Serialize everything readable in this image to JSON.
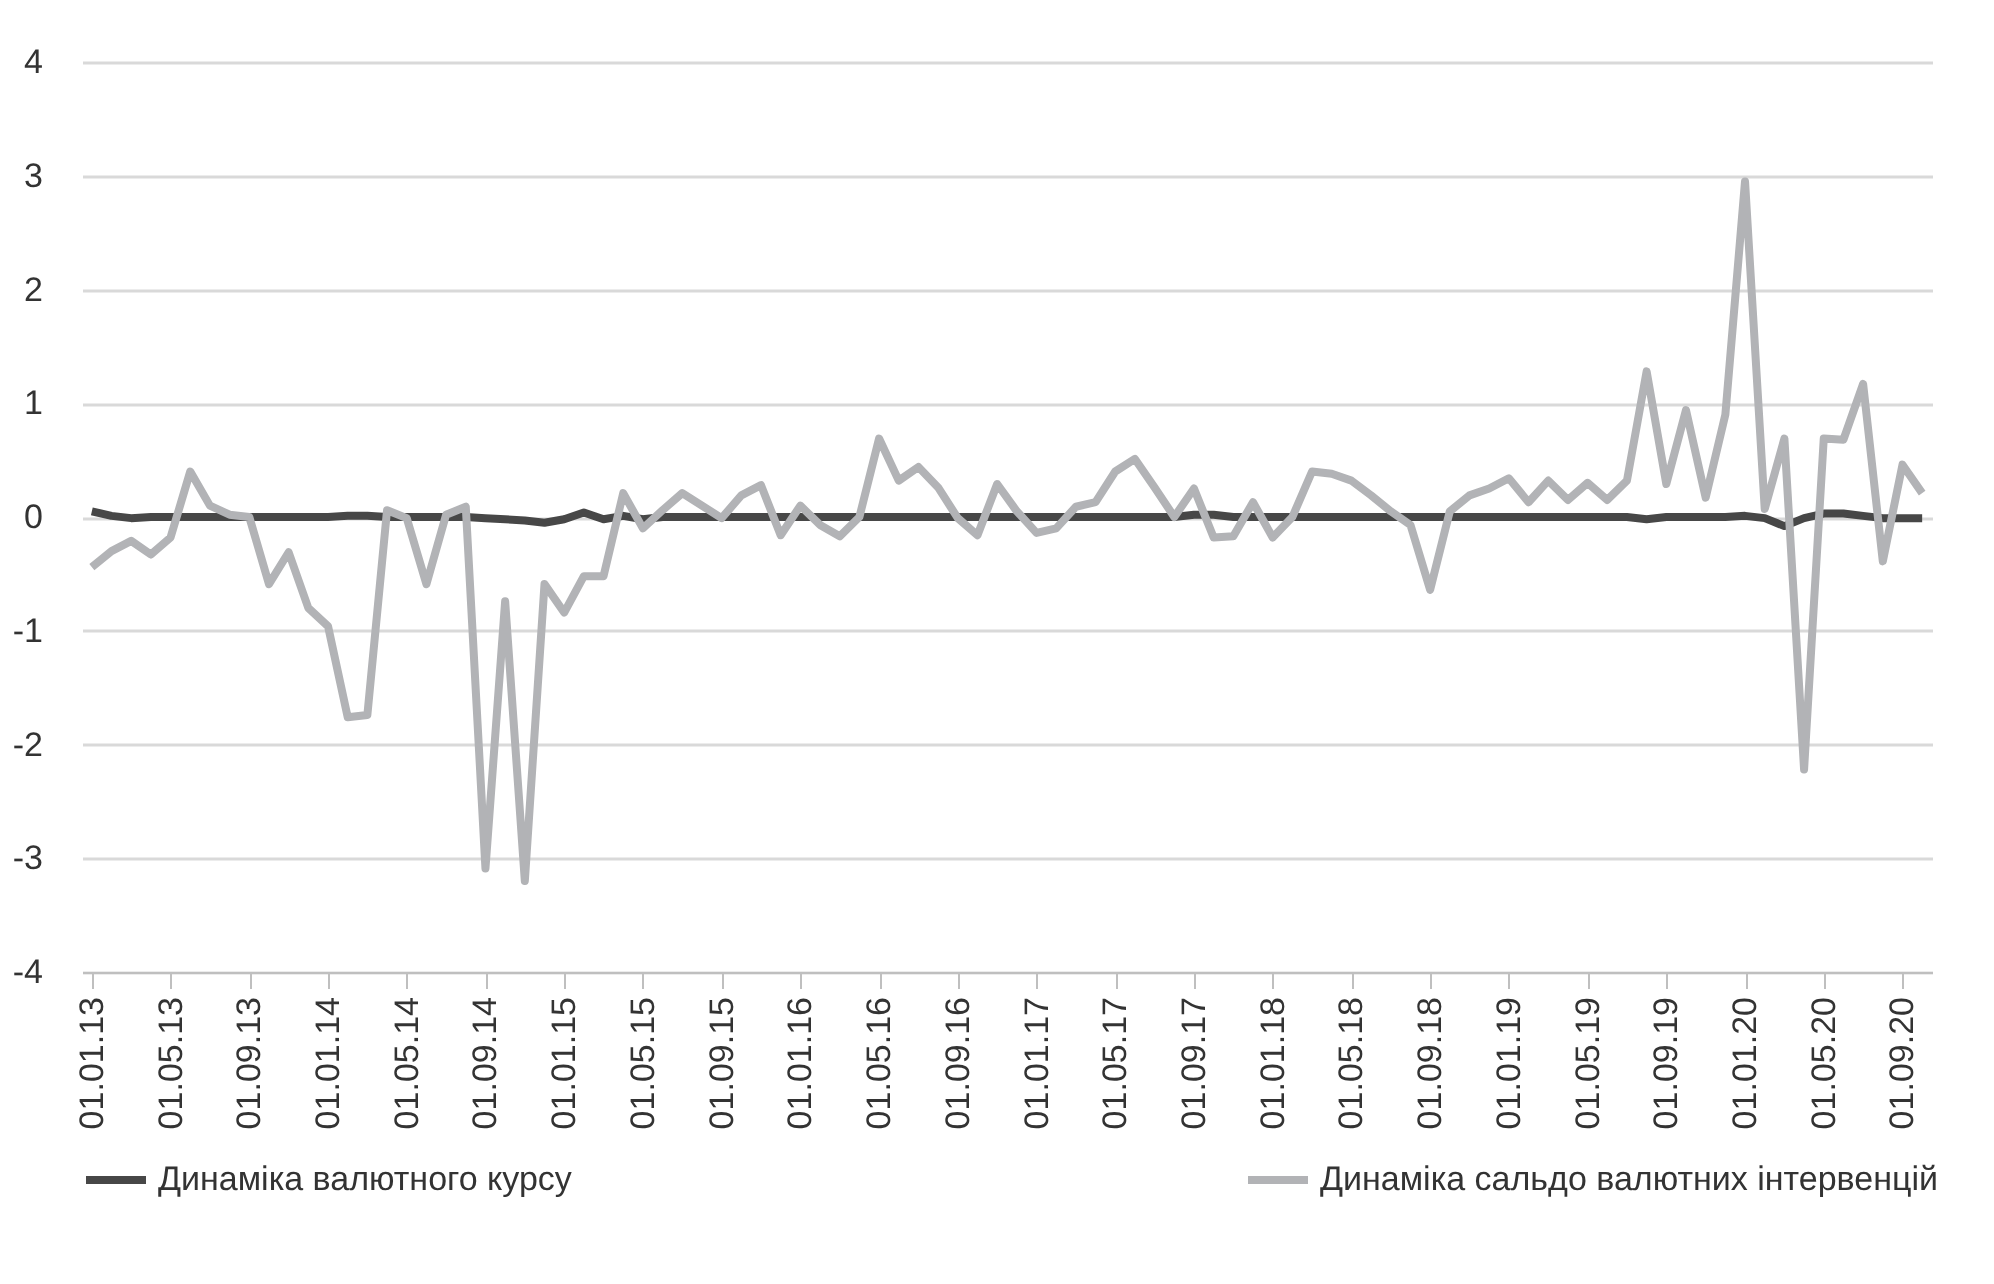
{
  "chart_data": {
    "type": "line",
    "categories": [
      "01.01.13",
      null,
      null,
      null,
      "01.05.13",
      null,
      null,
      null,
      "01.09.13",
      null,
      null,
      null,
      "01.01.14",
      null,
      null,
      null,
      "01.05.14",
      null,
      null,
      null,
      "01.09.14",
      null,
      null,
      null,
      "01.01.15",
      null,
      null,
      null,
      "01.05.15",
      null,
      null,
      null,
      "01.09.15",
      null,
      null,
      null,
      "01.01.16",
      null,
      null,
      null,
      "01.05.16",
      null,
      null,
      null,
      "01.09.16",
      null,
      null,
      null,
      "01.01.17",
      null,
      null,
      null,
      "01.05.17",
      null,
      null,
      null,
      "01.09.17",
      null,
      null,
      null,
      "01.01.18",
      null,
      null,
      null,
      "01.05.18",
      null,
      null,
      null,
      "01.09.18",
      null,
      null,
      null,
      "01.01.19",
      null,
      null,
      null,
      "01.05.19",
      null,
      null,
      null,
      "01.09.19",
      null,
      null,
      null,
      "01.01.20",
      null,
      null,
      null,
      "01.05.20",
      null,
      null,
      null,
      "01.09.20",
      null
    ],
    "series": [
      {
        "name": "Динаміка валютного курсу",
        "color": "#474747",
        "values": [
          0.05,
          0.01,
          -0.01,
          0,
          0,
          0,
          0,
          0,
          0,
          0,
          0,
          0,
          0,
          0.01,
          0.01,
          0,
          0,
          0,
          0,
          0,
          -0.01,
          -0.02,
          -0.03,
          -0.05,
          -0.02,
          0.04,
          -0.02,
          0.01,
          -0.02,
          0,
          0,
          0,
          0,
          0,
          0,
          0,
          0,
          0,
          0,
          0,
          0,
          0,
          0,
          0,
          0,
          0,
          0,
          0,
          0,
          0,
          0,
          0,
          0,
          0,
          0,
          0,
          0.02,
          0.02,
          0,
          0,
          0,
          0,
          0,
          0,
          0,
          0,
          0,
          0,
          0,
          0,
          0,
          0,
          0,
          0,
          0,
          0,
          0,
          0,
          0,
          -0.02,
          0,
          0,
          0,
          0,
          0.01,
          -0.01,
          -0.08,
          -0.01,
          0.03,
          0.03,
          0.01,
          -0.01,
          -0.01,
          -0.01
        ]
      },
      {
        "name": "Динаміка сальдо валютних інтервенцій",
        "color": "#b2b3b6",
        "values": [
          -0.44,
          -0.3,
          -0.21,
          -0.33,
          -0.18,
          0.4,
          0.1,
          0.02,
          0.0,
          -0.59,
          -0.31,
          -0.8,
          -0.96,
          -1.76,
          -1.74,
          0.06,
          -0.01,
          -0.59,
          0.02,
          0.09,
          -3.09,
          -0.74,
          -3.2,
          -0.59,
          -0.84,
          -0.52,
          -0.52,
          0.21,
          -0.1,
          0.06,
          0.21,
          0.1,
          -0.01,
          0.19,
          0.28,
          -0.16,
          0.1,
          -0.07,
          -0.17,
          0.0,
          0.69,
          0.32,
          0.44,
          0.26,
          -0.01,
          -0.16,
          0.29,
          0.05,
          -0.14,
          -0.1,
          0.09,
          0.13,
          0.4,
          0.51,
          0.26,
          0.0,
          0.25,
          -0.18,
          -0.17,
          0.13,
          -0.18,
          0.0,
          0.4,
          0.38,
          0.32,
          0.19,
          0.05,
          -0.07,
          -0.64,
          0.05,
          0.19,
          0.25,
          0.34,
          0.13,
          0.32,
          0.15,
          0.3,
          0.15,
          0.32,
          1.28,
          0.29,
          0.94,
          0.17,
          0.9,
          2.95,
          0.07,
          0.69,
          -2.22,
          0.69,
          0.68,
          1.17,
          -0.39,
          0.46,
          0.21
        ]
      }
    ],
    "ylim": [
      -4,
      4
    ],
    "yticks": [
      -4,
      -3,
      -2,
      -1,
      0,
      1,
      2,
      3,
      4
    ],
    "grid": "y",
    "legend": "bottom",
    "line_style": "solid",
    "marker": "none"
  }
}
